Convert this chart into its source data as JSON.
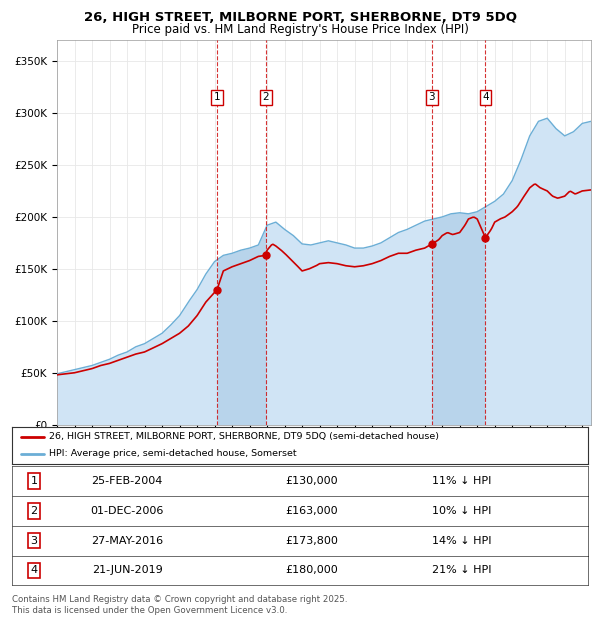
{
  "title_line1": "26, HIGH STREET, MILBORNE PORT, SHERBORNE, DT9 5DQ",
  "title_line2": "Price paid vs. HM Land Registry's House Price Index (HPI)",
  "legend_red": "26, HIGH STREET, MILBORNE PORT, SHERBORNE, DT9 5DQ (semi-detached house)",
  "legend_blue": "HPI: Average price, semi-detached house, Somerset",
  "footer_line1": "Contains HM Land Registry data © Crown copyright and database right 2025.",
  "footer_line2": "This data is licensed under the Open Government Licence v3.0.",
  "transactions": [
    {
      "label": "1",
      "date_decimal": 2004.14,
      "price": 130000,
      "note": "11% ↓ HPI",
      "date_str": "25-FEB-2004",
      "price_str": "£130,000"
    },
    {
      "label": "2",
      "date_decimal": 2006.92,
      "price": 163000,
      "note": "10% ↓ HPI",
      "date_str": "01-DEC-2006",
      "price_str": "£163,000"
    },
    {
      "label": "3",
      "date_decimal": 2016.4,
      "price": 173800,
      "note": "14% ↓ HPI",
      "date_str": "27-MAY-2016",
      "price_str": "£173,800"
    },
    {
      "label": "4",
      "date_decimal": 2019.47,
      "price": 180000,
      "note": "21% ↓ HPI",
      "date_str": "21-JUN-2019",
      "price_str": "£180,000"
    }
  ],
  "ylim": [
    0,
    370000
  ],
  "yticks": [
    0,
    50000,
    100000,
    150000,
    200000,
    250000,
    300000,
    350000
  ],
  "ytick_labels": [
    "£0",
    "£50K",
    "£100K",
    "£150K",
    "£200K",
    "£250K",
    "£300K",
    "£350K"
  ],
  "xmin": 1995.0,
  "xmax": 2025.5,
  "red_color": "#cc0000",
  "blue_fill_color": "#d0e4f5",
  "blue_line_color": "#6baed6",
  "chart_bg": "#ffffff",
  "grid_color": "#e8e8e8",
  "hpi_anchors": [
    [
      1995.0,
      49000
    ],
    [
      1995.5,
      51000
    ],
    [
      1996.0,
      53000
    ],
    [
      1996.5,
      55000
    ],
    [
      1997.0,
      57000
    ],
    [
      1997.5,
      60000
    ],
    [
      1998.0,
      63000
    ],
    [
      1998.5,
      67000
    ],
    [
      1999.0,
      70000
    ],
    [
      1999.5,
      75000
    ],
    [
      2000.0,
      78000
    ],
    [
      2000.5,
      83000
    ],
    [
      2001.0,
      88000
    ],
    [
      2001.5,
      96000
    ],
    [
      2002.0,
      105000
    ],
    [
      2002.5,
      118000
    ],
    [
      2003.0,
      130000
    ],
    [
      2003.5,
      145000
    ],
    [
      2004.0,
      157000
    ],
    [
      2004.5,
      163000
    ],
    [
      2005.0,
      165000
    ],
    [
      2005.5,
      168000
    ],
    [
      2006.0,
      170000
    ],
    [
      2006.5,
      173000
    ],
    [
      2007.0,
      192000
    ],
    [
      2007.5,
      195000
    ],
    [
      2008.0,
      188000
    ],
    [
      2008.5,
      182000
    ],
    [
      2009.0,
      174000
    ],
    [
      2009.5,
      173000
    ],
    [
      2010.0,
      175000
    ],
    [
      2010.5,
      177000
    ],
    [
      2011.0,
      175000
    ],
    [
      2011.5,
      173000
    ],
    [
      2012.0,
      170000
    ],
    [
      2012.5,
      170000
    ],
    [
      2013.0,
      172000
    ],
    [
      2013.5,
      175000
    ],
    [
      2014.0,
      180000
    ],
    [
      2014.5,
      185000
    ],
    [
      2015.0,
      188000
    ],
    [
      2015.5,
      192000
    ],
    [
      2016.0,
      196000
    ],
    [
      2016.5,
      198000
    ],
    [
      2017.0,
      200000
    ],
    [
      2017.5,
      203000
    ],
    [
      2018.0,
      204000
    ],
    [
      2018.5,
      203000
    ],
    [
      2019.0,
      205000
    ],
    [
      2019.5,
      210000
    ],
    [
      2020.0,
      215000
    ],
    [
      2020.5,
      222000
    ],
    [
      2021.0,
      235000
    ],
    [
      2021.5,
      255000
    ],
    [
      2022.0,
      278000
    ],
    [
      2022.5,
      292000
    ],
    [
      2023.0,
      295000
    ],
    [
      2023.5,
      285000
    ],
    [
      2024.0,
      278000
    ],
    [
      2024.5,
      282000
    ],
    [
      2025.0,
      290000
    ],
    [
      2025.5,
      292000
    ]
  ],
  "red_anchors": [
    [
      1995.0,
      48000
    ],
    [
      1995.5,
      49000
    ],
    [
      1996.0,
      50000
    ],
    [
      1996.5,
      52000
    ],
    [
      1997.0,
      54000
    ],
    [
      1997.5,
      57000
    ],
    [
      1998.0,
      59000
    ],
    [
      1998.5,
      62000
    ],
    [
      1999.0,
      65000
    ],
    [
      1999.5,
      68000
    ],
    [
      2000.0,
      70000
    ],
    [
      2000.5,
      74000
    ],
    [
      2001.0,
      78000
    ],
    [
      2001.5,
      83000
    ],
    [
      2002.0,
      88000
    ],
    [
      2002.5,
      95000
    ],
    [
      2003.0,
      105000
    ],
    [
      2003.5,
      118000
    ],
    [
      2004.14,
      130000
    ],
    [
      2004.5,
      148000
    ],
    [
      2005.0,
      152000
    ],
    [
      2005.5,
      155000
    ],
    [
      2006.0,
      158000
    ],
    [
      2006.5,
      162000
    ],
    [
      2006.92,
      163000
    ],
    [
      2007.0,
      168000
    ],
    [
      2007.3,
      174000
    ],
    [
      2007.5,
      172000
    ],
    [
      2007.8,
      168000
    ],
    [
      2008.0,
      165000
    ],
    [
      2008.3,
      160000
    ],
    [
      2008.6,
      155000
    ],
    [
      2009.0,
      148000
    ],
    [
      2009.4,
      150000
    ],
    [
      2009.8,
      153000
    ],
    [
      2010.0,
      155000
    ],
    [
      2010.5,
      156000
    ],
    [
      2011.0,
      155000
    ],
    [
      2011.5,
      153000
    ],
    [
      2012.0,
      152000
    ],
    [
      2012.5,
      153000
    ],
    [
      2013.0,
      155000
    ],
    [
      2013.5,
      158000
    ],
    [
      2014.0,
      162000
    ],
    [
      2014.5,
      165000
    ],
    [
      2015.0,
      165000
    ],
    [
      2015.5,
      168000
    ],
    [
      2016.0,
      170000
    ],
    [
      2016.4,
      173800
    ],
    [
      2016.8,
      178000
    ],
    [
      2017.0,
      182000
    ],
    [
      2017.3,
      185000
    ],
    [
      2017.6,
      183000
    ],
    [
      2018.0,
      185000
    ],
    [
      2018.3,
      192000
    ],
    [
      2018.5,
      198000
    ],
    [
      2018.8,
      200000
    ],
    [
      2019.0,
      198000
    ],
    [
      2019.47,
      180000
    ],
    [
      2019.8,
      188000
    ],
    [
      2020.0,
      195000
    ],
    [
      2020.3,
      198000
    ],
    [
      2020.6,
      200000
    ],
    [
      2021.0,
      205000
    ],
    [
      2021.3,
      210000
    ],
    [
      2021.6,
      218000
    ],
    [
      2022.0,
      228000
    ],
    [
      2022.3,
      232000
    ],
    [
      2022.6,
      228000
    ],
    [
      2023.0,
      225000
    ],
    [
      2023.3,
      220000
    ],
    [
      2023.6,
      218000
    ],
    [
      2024.0,
      220000
    ],
    [
      2024.3,
      225000
    ],
    [
      2024.6,
      222000
    ],
    [
      2025.0,
      225000
    ],
    [
      2025.5,
      226000
    ]
  ]
}
